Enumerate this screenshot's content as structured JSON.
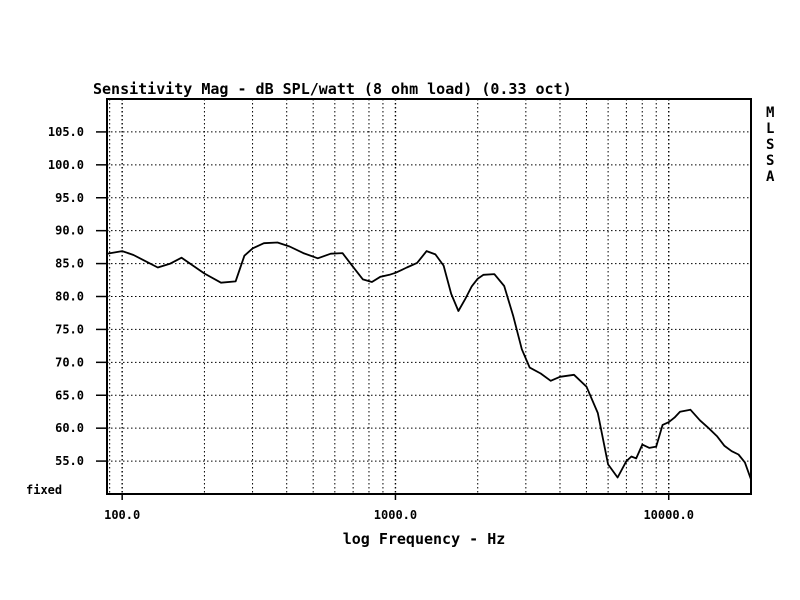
{
  "chart_data": {
    "type": "line",
    "title": "Sensitivity Mag - dB SPL/watt (8 ohm load) (0.33 oct)",
    "xlabel": "log Frequency - Hz",
    "ylabel": "",
    "x_scale": "log",
    "xlim": [
      88,
      20000
    ],
    "ylim": [
      50,
      110
    ],
    "grid": true,
    "y_ticks": [
      {
        "value": 105,
        "label": "105.0"
      },
      {
        "value": 100,
        "label": "100.0"
      },
      {
        "value": 95,
        "label": "95.0"
      },
      {
        "value": 90,
        "label": "90.0"
      },
      {
        "value": 85,
        "label": "85.0"
      },
      {
        "value": 80,
        "label": "80.0"
      },
      {
        "value": 75,
        "label": "75.0"
      },
      {
        "value": 70,
        "label": "70.0"
      },
      {
        "value": 65,
        "label": "65.0"
      },
      {
        "value": 60,
        "label": "60.0"
      },
      {
        "value": 55,
        "label": "55.0"
      }
    ],
    "y_bottom_label": "fixed",
    "x_ticks": [
      {
        "value": 100,
        "label": "100.0"
      },
      {
        "value": 1000,
        "label": "1000.0"
      },
      {
        "value": 10000,
        "label": "10000.0"
      }
    ],
    "side_letters": [
      "M",
      "L",
      "S",
      "S",
      "A"
    ],
    "series": [
      {
        "color": "#000000",
        "x": [
          88,
          100,
          110,
          120,
          135,
          150,
          165,
          180,
          200,
          230,
          260,
          280,
          300,
          330,
          370,
          410,
          460,
          520,
          580,
          640,
          700,
          760,
          820,
          880,
          950,
          1000,
          1050,
          1100,
          1200,
          1300,
          1400,
          1500,
          1600,
          1700,
          1800,
          1900,
          2000,
          2100,
          2300,
          2500,
          2700,
          2900,
          3100,
          3400,
          3700,
          4000,
          4500,
          5000,
          5500,
          6000,
          6500,
          7000,
          7300,
          7600,
          8000,
          8500,
          9000,
          9500,
          10000,
          10500,
          11000,
          12000,
          13000,
          14000,
          15000,
          16000,
          17000,
          18000,
          19000,
          20000
        ],
        "y": [
          86.5,
          86.9,
          86.3,
          85.5,
          84.4,
          85.0,
          85.9,
          84.8,
          83.5,
          82.1,
          82.3,
          86.2,
          87.3,
          88.1,
          88.2,
          87.6,
          86.6,
          85.8,
          86.5,
          86.6,
          84.5,
          82.6,
          82.2,
          83.0,
          83.3,
          83.6,
          84.0,
          84.4,
          85.1,
          86.9,
          86.4,
          84.7,
          80.4,
          77.8,
          79.6,
          81.5,
          82.7,
          83.3,
          83.4,
          81.6,
          77.0,
          72.0,
          69.2,
          68.3,
          67.2,
          67.8,
          68.1,
          66.3,
          62.3,
          54.5,
          52.5,
          55.0,
          55.7,
          55.4,
          57.5,
          57.0,
          57.2,
          60.5,
          60.9,
          61.6,
          62.5,
          62.8,
          61.2,
          60.0,
          58.8,
          57.3,
          56.5,
          56.0,
          54.8,
          52.2
        ]
      }
    ]
  }
}
